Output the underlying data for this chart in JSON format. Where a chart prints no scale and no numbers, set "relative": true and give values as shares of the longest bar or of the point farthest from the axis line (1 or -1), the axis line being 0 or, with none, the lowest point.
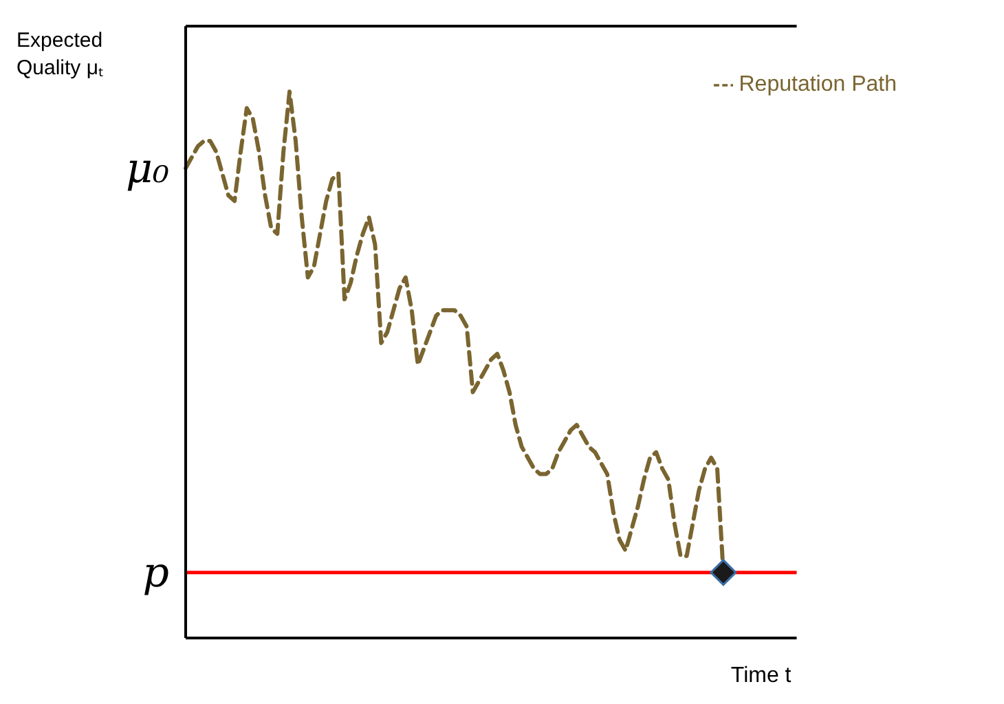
{
  "chart_data": {
    "type": "line",
    "relative": true,
    "xlabel": "Time t",
    "ylabel": "Expected Quality μₜ",
    "annotations": [
      "μ₀"
    ],
    "legend": "top right",
    "line_style": "dashed",
    "categories": [
      null,
      null,
      null,
      null,
      null,
      null,
      null,
      null,
      null,
      null,
      null,
      null,
      null,
      null,
      null,
      null,
      null,
      null,
      null,
      null,
      null,
      null,
      null,
      null,
      null,
      null,
      null,
      null,
      null,
      null,
      null,
      null,
      null,
      null,
      null,
      null,
      null,
      null,
      null,
      null,
      null,
      null,
      null,
      null,
      null,
      null,
      null,
      null,
      null,
      null,
      null,
      null,
      null,
      null,
      null,
      null,
      null,
      null,
      null,
      null,
      null,
      null,
      null,
      null,
      null,
      null,
      null,
      null,
      null,
      null,
      null,
      null,
      null,
      null,
      null,
      null,
      null,
      null,
      null,
      null,
      null,
      null,
      null,
      null,
      null,
      null,
      null,
      null,
      null,
      null,
      null,
      null,
      null,
      null,
      null,
      null,
      null,
      null,
      null,
      null,
      null
    ],
    "series": [
      {
        "name": "Reputation Path",
        "color": "#7a6530",
        "values": [
          0.86,
          0.88,
          0.9,
          0.91,
          0.91,
          0.89,
          0.85,
          0.81,
          0.8,
          0.89,
          0.97,
          0.95,
          0.89,
          0.81,
          0.75,
          0.74,
          0.89,
          1.0,
          0.91,
          0.77,
          0.66,
          0.68,
          0.74,
          0.8,
          0.84,
          0.85,
          0.62,
          0.65,
          0.7,
          0.74,
          0.77,
          0.72,
          0.54,
          0.56,
          0.6,
          0.64,
          0.66,
          0.6,
          0.5,
          0.53,
          0.56,
          0.59,
          0.6,
          0.6,
          0.6,
          0.59,
          0.57,
          0.45,
          0.47,
          0.49,
          0.51,
          0.52,
          0.49,
          0.45,
          0.39,
          0.35,
          0.33,
          0.31,
          0.3,
          0.3,
          0.31,
          0.34,
          0.36,
          0.38,
          0.39,
          0.37,
          0.35,
          0.34,
          0.32,
          0.3,
          0.23,
          0.18,
          0.16,
          0.2,
          0.24,
          0.29,
          0.33,
          0.34,
          0.31,
          0.29,
          0.21,
          0.15,
          0.15,
          0.21,
          0.27,
          0.31,
          0.33,
          0.31,
          0.12,
          null,
          null,
          null,
          null,
          null,
          null,
          null,
          null,
          null,
          null,
          null,
          null
        ]
      }
    ],
    "ref_lines": [
      {
        "axis": "y",
        "value": 0.12,
        "label": "p",
        "color": "#ff0000"
      }
    ]
  }
}
